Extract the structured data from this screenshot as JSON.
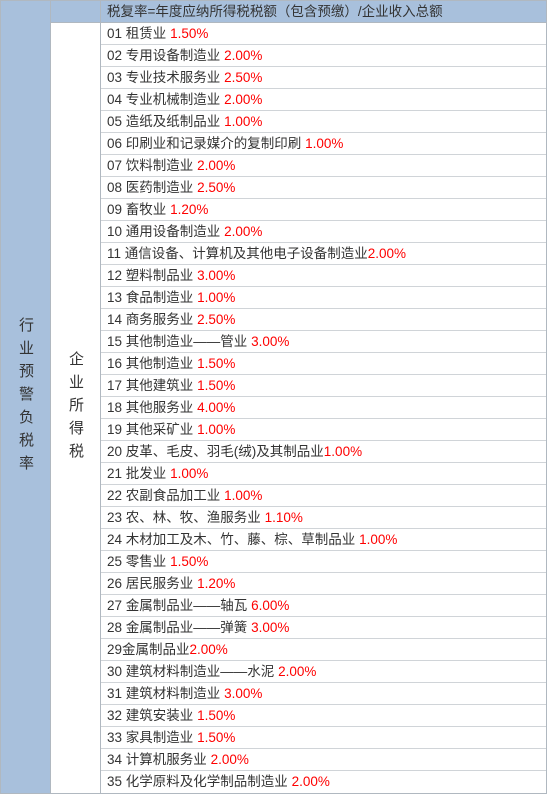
{
  "leftLabel": "行业预警负税率",
  "midLabel": "企业所得税",
  "headerText": "税复率=年度应纳所得税税额（包含预缴）/企业收入总额",
  "colors": {
    "headerBg": "#a8c0dc",
    "border": "#b0b8c0",
    "rowBorder": "#d0d4d8",
    "pctColor": "#ff0000",
    "textColor": "#333333",
    "bg": "#ffffff"
  },
  "rows": [
    {
      "num": "01",
      "label": "租赁业",
      "pct": "1.50%",
      "space": " "
    },
    {
      "num": "02",
      "label": "专用设备制造业",
      "pct": "2.00%",
      "space": " "
    },
    {
      "num": "03",
      "label": "专业技术服务业",
      "pct": "2.50%",
      "space": " "
    },
    {
      "num": "04",
      "label": "专业机械制造业",
      "pct": "2.00%",
      "space": " "
    },
    {
      "num": "05",
      "label": "造纸及纸制品业",
      "pct": "1.00%",
      "space": " "
    },
    {
      "num": "06",
      "label": "印刷业和记录媒介的复制印刷",
      "pct": "1.00%",
      "space": " "
    },
    {
      "num": "07",
      "label": "饮料制造业",
      "pct": "2.00%",
      "space": " "
    },
    {
      "num": "08",
      "label": "医药制造业",
      "pct": "2.50%",
      "space": " "
    },
    {
      "num": "09",
      "label": "畜牧业",
      "pct": "1.20%",
      "space": " "
    },
    {
      "num": "10",
      "label": "通用设备制造业",
      "pct": "2.00%",
      "space": " "
    },
    {
      "num": "11",
      "label": "通信设备、计算机及其他电子设备制造业",
      "pct": "2.00%",
      "space": ""
    },
    {
      "num": "12",
      "label": "塑料制品业",
      "pct": "3.00%",
      "space": " "
    },
    {
      "num": "13",
      "label": "食品制造业",
      "pct": "1.00%",
      "space": " "
    },
    {
      "num": "14",
      "label": "商务服务业",
      "pct": "2.50%",
      "space": " "
    },
    {
      "num": "15",
      "label": "其他制造业——管业",
      "pct": "3.00%",
      "space": " "
    },
    {
      "num": "16",
      "label": "其他制造业",
      "pct": "1.50%",
      "space": " "
    },
    {
      "num": "17",
      "label": "其他建筑业",
      "pct": "1.50%",
      "space": " "
    },
    {
      "num": "18",
      "label": "其他服务业",
      "pct": "4.00%",
      "space": " "
    },
    {
      "num": "19",
      "label": "其他采矿业",
      "pct": "1.00%",
      "space": " "
    },
    {
      "num": "20",
      "label": "皮革、毛皮、羽毛(绒)及其制品业",
      "pct": "1.00%",
      "space": ""
    },
    {
      "num": "21",
      "label": "批发业",
      "pct": "1.00%",
      "space": " "
    },
    {
      "num": "22",
      "label": "农副食品加工业",
      "pct": "1.00%",
      "space": " "
    },
    {
      "num": "23",
      "label": "农、林、牧、渔服务业",
      "pct": "1.10%",
      "space": " "
    },
    {
      "num": "24",
      "label": "木材加工及木、竹、藤、棕、草制品业",
      "pct": "1.00%",
      "space": " "
    },
    {
      "num": "25",
      "label": "零售业",
      "pct": "1.50%",
      "space": " "
    },
    {
      "num": "26",
      "label": "居民服务业",
      "pct": "1.20%",
      "space": " "
    },
    {
      "num": "27",
      "label": "金属制品业——轴瓦",
      "pct": "6.00%",
      "space": " "
    },
    {
      "num": "28",
      "label": "金属制品业——弹簧",
      "pct": "3.00%",
      "space": " "
    },
    {
      "num": "29",
      "label": "金属制品业",
      "pct": "2.00%",
      "space": "",
      "nospace2": true
    },
    {
      "num": "30",
      "label": "建筑材料制造业——水泥",
      "pct": "2.00%",
      "space": " "
    },
    {
      "num": "31",
      "label": "建筑材料制造业",
      "pct": "3.00%",
      "space": " "
    },
    {
      "num": "32",
      "label": "建筑安装业",
      "pct": "1.50%",
      "space": " "
    },
    {
      "num": "33",
      "label": "家具制造业",
      "pct": "1.50%",
      "space": " "
    },
    {
      "num": "34",
      "label": "计算机服务业",
      "pct": "2.00%",
      "space": " "
    },
    {
      "num": "35",
      "label": "化学原料及化学制品制造业",
      "pct": "2.00%",
      "space": " "
    }
  ]
}
